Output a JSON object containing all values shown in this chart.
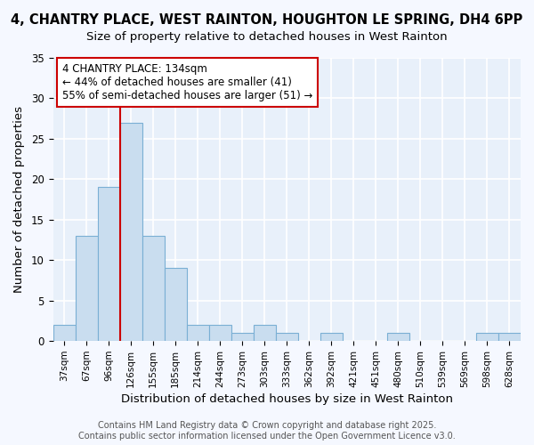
{
  "title_line1": "4, CHANTRY PLACE, WEST RAINTON, HOUGHTON LE SPRING, DH4 6PP",
  "title_line2": "Size of property relative to detached houses in West Rainton",
  "xlabel": "Distribution of detached houses by size in West Rainton",
  "ylabel": "Number of detached properties",
  "bar_color": "#c9ddef",
  "bar_edge_color": "#7aafd4",
  "categories": [
    "37sqm",
    "67sqm",
    "96sqm",
    "126sqm",
    "155sqm",
    "185sqm",
    "214sqm",
    "244sqm",
    "273sqm",
    "303sqm",
    "333sqm",
    "362sqm",
    "392sqm",
    "421sqm",
    "451sqm",
    "480sqm",
    "510sqm",
    "539sqm",
    "569sqm",
    "598sqm",
    "628sqm"
  ],
  "values": [
    2,
    13,
    19,
    27,
    13,
    9,
    2,
    2,
    1,
    2,
    1,
    0,
    1,
    0,
    0,
    1,
    0,
    0,
    0,
    1,
    1
  ],
  "ylim": [
    0,
    35
  ],
  "yticks": [
    0,
    5,
    10,
    15,
    20,
    25,
    30,
    35
  ],
  "vline_index": 3,
  "vline_color": "#cc0000",
  "annotation_text": "4 CHANTRY PLACE: 134sqm\n← 44% of detached houses are smaller (41)\n55% of semi-detached houses are larger (51) →",
  "annotation_box_facecolor": "#ffffff",
  "annotation_box_edgecolor": "#cc0000",
  "footer_text": "Contains HM Land Registry data © Crown copyright and database right 2025.\nContains public sector information licensed under the Open Government Licence v3.0.",
  "fig_background_color": "#f5f8ff",
  "plot_background_color": "#e8f0fa",
  "grid_color": "#ffffff",
  "title_fontsize": 10.5,
  "subtitle_fontsize": 9.5,
  "axis_label_fontsize": 9.5,
  "tick_fontsize": 7.5,
  "footer_fontsize": 7,
  "annotation_fontsize": 8.5
}
